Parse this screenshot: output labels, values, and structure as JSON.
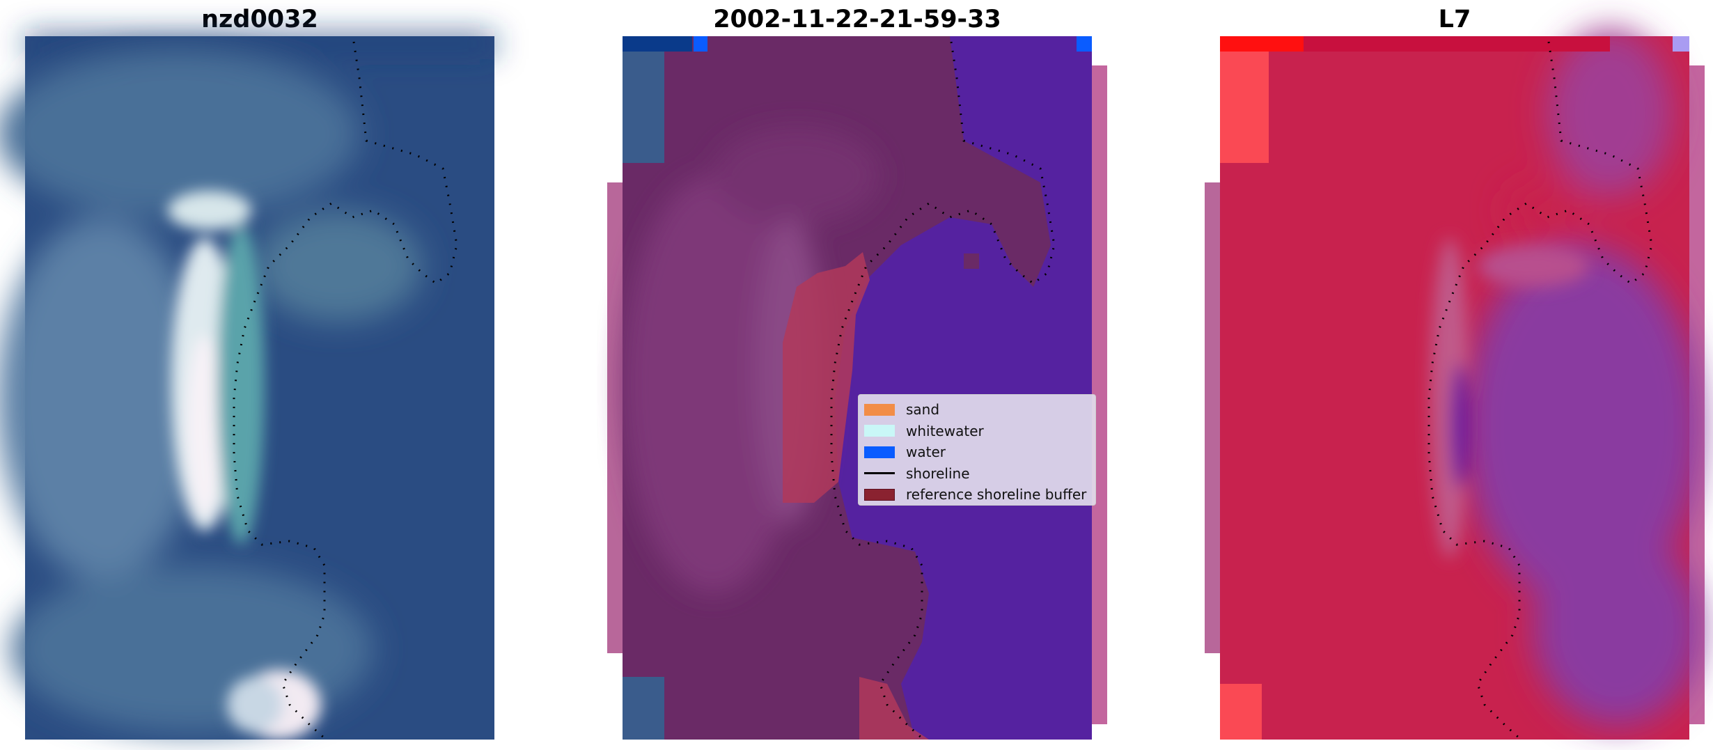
{
  "panels": [
    {
      "title": "nzd0032",
      "kind": "rgb"
    },
    {
      "title": "2002-11-22-21-59-33",
      "kind": "classification"
    },
    {
      "title": "L7",
      "kind": "index"
    }
  ],
  "legend": {
    "items": [
      {
        "label": "sand",
        "color": "#f28d47",
        "type": "patch"
      },
      {
        "label": "whitewater",
        "color": "#c9f7f7",
        "type": "patch"
      },
      {
        "label": "water",
        "color": "#0a5cff",
        "type": "patch"
      },
      {
        "label": "shoreline",
        "color": "#000000",
        "type": "line"
      },
      {
        "label": "reference shoreline buffer",
        "color": "#8a2230",
        "type": "patch"
      }
    ]
  },
  "colors": {
    "rgb_dark": "#24427a",
    "rgb_mid": "#3e6a8e",
    "rgb_white": "#f2eef5",
    "class_land": "#6a2a66",
    "class_water": "#5522a0",
    "class_buffer": "#b0385a",
    "index_red": "#c8224e",
    "index_purple": "#8a3aa0"
  }
}
